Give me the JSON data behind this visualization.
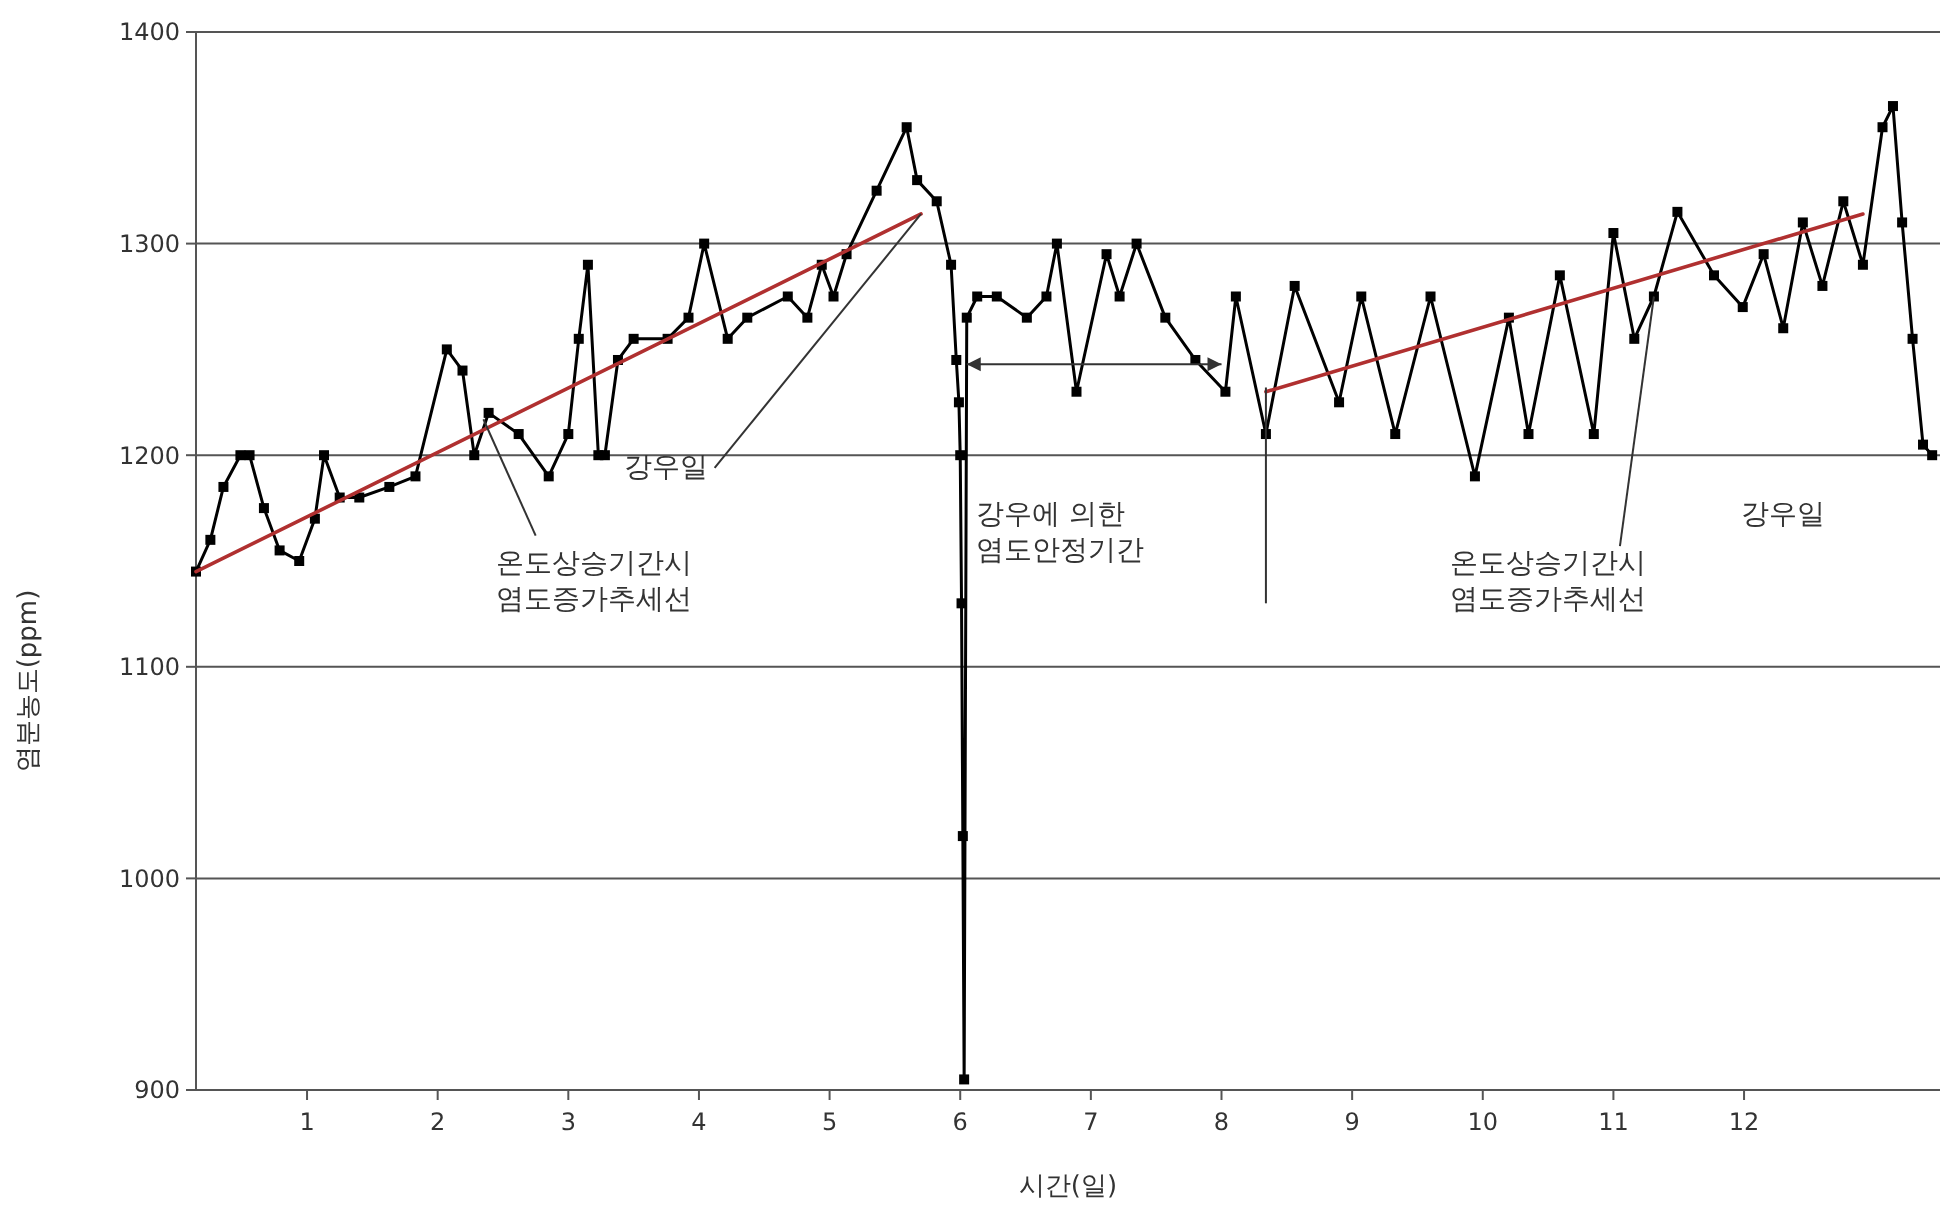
{
  "chart_data": {
    "type": "line",
    "xlabel": "시간(일)",
    "ylabel": "염분농도(ppm)",
    "xlim": [
      0.15,
      13.5
    ],
    "xticks": [
      1,
      2,
      3,
      4,
      5,
      6,
      7,
      8,
      9,
      10,
      11,
      12
    ],
    "ylim": [
      900,
      1400
    ],
    "yticks": [
      900,
      1000,
      1100,
      1200,
      1300,
      1400
    ],
    "grid": "y",
    "marker": "square",
    "line_style": "solid",
    "series": [
      {
        "color": "#000000",
        "x": [
          0.15,
          0.26,
          0.36,
          0.49,
          0.56,
          0.67,
          0.79,
          0.94,
          1.06,
          1.13,
          1.25,
          1.4,
          1.63,
          1.83,
          2.07,
          2.19,
          2.28,
          2.39,
          2.62,
          2.85,
          3.0,
          3.08,
          3.15,
          3.23,
          3.28,
          3.38,
          3.5,
          3.76,
          3.92,
          4.04,
          4.22,
          4.37,
          4.68,
          4.83,
          4.94,
          5.03,
          5.13,
          5.36,
          5.59,
          5.67,
          5.82,
          5.93,
          5.97,
          5.99,
          6.0,
          6.01,
          6.02,
          6.03,
          6.05,
          6.13,
          6.28,
          6.51,
          6.66,
          6.74,
          6.89,
          7.12,
          7.22,
          7.35,
          7.57,
          7.8,
          8.03,
          8.11,
          8.34,
          8.56,
          8.9,
          9.07,
          9.33,
          9.6,
          9.94,
          10.2,
          10.35,
          10.59,
          10.85,
          11.0,
          11.16,
          11.31,
          11.49,
          11.77,
          11.99,
          12.15,
          12.3,
          12.45,
          12.6,
          12.76,
          12.91,
          13.06,
          13.14,
          13.21,
          13.29,
          13.37,
          13.44
        ],
        "values": [
          1145,
          1160,
          1185,
          1200,
          1200,
          1175,
          1155,
          1150,
          1170,
          1200,
          1180,
          1180,
          1185,
          1190,
          1250,
          1240,
          1200,
          1220,
          1210,
          1190,
          1210,
          1255,
          1290,
          1200,
          1200,
          1245,
          1255,
          1255,
          1265,
          1300,
          1255,
          1265,
          1275,
          1265,
          1290,
          1275,
          1295,
          1325,
          1355,
          1330,
          1320,
          1290,
          1245,
          1225,
          1200,
          1130,
          1020,
          905,
          1265,
          1275,
          1275,
          1265,
          1275,
          1300,
          1230,
          1295,
          1275,
          1300,
          1265,
          1245,
          1230,
          1275,
          1210,
          1280,
          1225,
          1275,
          1210,
          1275,
          1190,
          1265,
          1210,
          1285,
          1210,
          1305,
          1255,
          1275,
          1315,
          1285,
          1270,
          1295,
          1260,
          1310,
          1280,
          1320,
          1290,
          1355,
          1365,
          1310,
          1255,
          1205,
          1200
        ]
      },
      {
        "type": "line",
        "marker": "none",
        "color": "#b03030",
        "x": [
          0.15,
          5.7
        ],
        "values": [
          1145,
          1314
        ]
      },
      {
        "type": "line",
        "marker": "none",
        "color": "#b03030",
        "x": [
          8.34,
          12.91
        ],
        "values": [
          1230,
          1314
        ]
      }
    ],
    "annotations": [
      {
        "text": "강우일",
        "x": 5.7,
        "y": 1314
      },
      {
        "text": "온도상승기간시\n염도증가추세선",
        "x": 2.35,
        "y": 1217
      },
      "강우에 의한\n염도안정기간",
      {
        "text": "온도상승기간시\n염도증가추세선",
        "x": 11.31,
        "y": 1275
      },
      "강우일"
    ]
  }
}
